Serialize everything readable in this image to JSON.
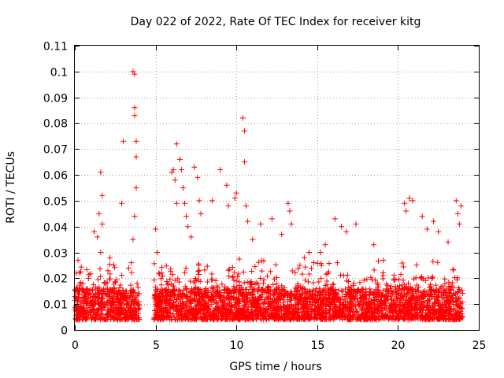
{
  "chart_data": {
    "type": "scatter",
    "title": "Day 022 of 2022, Rate Of TEC Index for receiver kitg",
    "xlabel": "GPS time / hours",
    "ylabel": "ROTI / TECUs",
    "xlim": [
      0,
      25
    ],
    "ylim": [
      0,
      0.11
    ],
    "x_ticks": [
      "0",
      "5",
      "10",
      "15",
      "20",
      "25"
    ],
    "y_ticks": [
      "0",
      "0.01",
      "0.02",
      "0.03",
      "0.04",
      "0.05",
      "0.06",
      "0.07",
      "0.08",
      "0.09",
      "0.1",
      "0.11"
    ],
    "grid": true,
    "marker": "+",
    "color": "#ff0000",
    "series": [
      {
        "name": "ROTI",
        "dense_band": {
          "y_low": 0.004,
          "y_high": 0.016,
          "segments": [
            [
              0,
              4.0
            ],
            [
              4.9,
              24.0
            ]
          ]
        },
        "x": [
          0.1,
          0.2,
          0.5,
          1.2,
          1.4,
          1.5,
          1.6,
          1.7,
          1.7,
          1.6,
          2.9,
          3.0,
          3.6,
          3.7,
          3.7,
          3.7,
          3.8,
          3.8,
          3.8,
          3.7,
          3.6,
          3.5,
          5.0,
          5.1,
          5.2,
          6.0,
          6.1,
          6.2,
          6.3,
          6.3,
          6.5,
          6.6,
          6.7,
          6.8,
          6.9,
          7.0,
          7.2,
          7.4,
          7.6,
          7.7,
          7.8,
          8.5,
          9.0,
          9.4,
          9.5,
          9.9,
          10.0,
          10.4,
          10.5,
          10.5,
          10.6,
          10.7,
          11.0,
          11.5,
          12.2,
          12.8,
          13.2,
          13.3,
          13.4,
          14.2,
          14.5,
          15.2,
          15.5,
          16.1,
          16.5,
          16.8,
          17.4,
          18.5,
          19.1,
          20.4,
          20.5,
          20.7,
          20.9,
          21.5,
          21.8,
          22.2,
          22.5,
          23.1,
          23.6,
          23.7,
          23.8,
          23.9
        ],
        "y": [
          0.022,
          0.027,
          0.018,
          0.038,
          0.036,
          0.045,
          0.061,
          0.052,
          0.041,
          0.03,
          0.049,
          0.073,
          0.1,
          0.099,
          0.086,
          0.083,
          0.073,
          0.067,
          0.055,
          0.044,
          0.035,
          0.026,
          0.039,
          0.03,
          0.022,
          0.061,
          0.062,
          0.058,
          0.049,
          0.072,
          0.066,
          0.062,
          0.055,
          0.049,
          0.044,
          0.04,
          0.036,
          0.063,
          0.059,
          0.05,
          0.045,
          0.05,
          0.062,
          0.056,
          0.048,
          0.051,
          0.053,
          0.082,
          0.077,
          0.065,
          0.048,
          0.042,
          0.035,
          0.041,
          0.043,
          0.037,
          0.049,
          0.046,
          0.041,
          0.028,
          0.03,
          0.03,
          0.033,
          0.043,
          0.04,
          0.038,
          0.041,
          0.033,
          0.027,
          0.049,
          0.046,
          0.051,
          0.05,
          0.044,
          0.039,
          0.042,
          0.038,
          0.034,
          0.05,
          0.045,
          0.041,
          0.048
        ]
      }
    ]
  }
}
